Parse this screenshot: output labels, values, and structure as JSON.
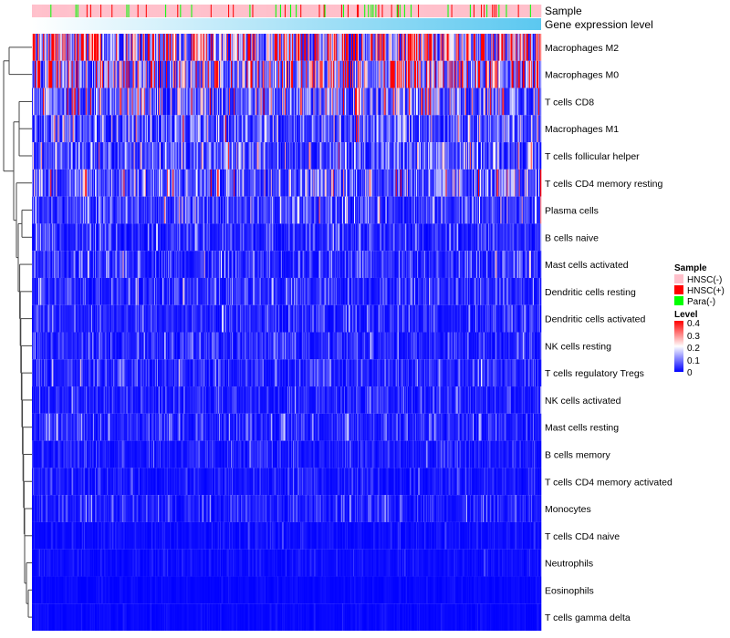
{
  "chart_data": {
    "type": "heatmap",
    "title": "",
    "annotations": {
      "sample_label": "Sample",
      "expression_label": "Gene expression level"
    },
    "rows": [
      {
        "name": "Macrophages M2",
        "mean_level": 0.25
      },
      {
        "name": "Macrophages M0",
        "mean_level": 0.2
      },
      {
        "name": "T cells CD8",
        "mean_level": 0.13
      },
      {
        "name": "Macrophages M1",
        "mean_level": 0.08
      },
      {
        "name": "T cells follicular helper",
        "mean_level": 0.08
      },
      {
        "name": "T cells CD4 memory resting",
        "mean_level": 0.1
      },
      {
        "name": "Plasma cells",
        "mean_level": 0.06
      },
      {
        "name": "B cells naive",
        "mean_level": 0.04
      },
      {
        "name": "Mast cells activated",
        "mean_level": 0.045
      },
      {
        "name": "Dendritic cells resting",
        "mean_level": 0.045
      },
      {
        "name": "Dendritic cells activated",
        "mean_level": 0.035
      },
      {
        "name": "NK cells resting",
        "mean_level": 0.035
      },
      {
        "name": "T cells regulatory  Tregs",
        "mean_level": 0.04
      },
      {
        "name": "NK cells activated",
        "mean_level": 0.03
      },
      {
        "name": "Mast cells resting",
        "mean_level": 0.04
      },
      {
        "name": "B cells memory",
        "mean_level": 0.025
      },
      {
        "name": "T cells CD4 memory activated",
        "mean_level": 0.02
      },
      {
        "name": "Monocytes",
        "mean_level": 0.03
      },
      {
        "name": "T cells CD4 naive",
        "mean_level": 0.012
      },
      {
        "name": "Neutrophils",
        "mean_level": 0.012
      },
      {
        "name": "Eosinophils",
        "mean_level": 0.005
      },
      {
        "name": "T cells gamma delta",
        "mean_level": 0.006
      }
    ],
    "n_samples": 550,
    "legend": {
      "sample": {
        "title": "Sample",
        "entries": [
          {
            "label": "HNSC(-)",
            "color": "#FFC0CB"
          },
          {
            "label": "HNSC(+)",
            "color": "#FF0000"
          },
          {
            "label": "Para(-)",
            "color": "#00FF00"
          }
        ]
      },
      "level": {
        "title": "Level",
        "ticks": [
          "0.4",
          "0.3",
          "0.2",
          "0.1",
          "0"
        ],
        "range": [
          0,
          0.4
        ],
        "colors": {
          "low": "#0000FF",
          "mid": "#FFFFFF",
          "high": "#FF0000"
        }
      },
      "placement": "right"
    },
    "expression_colors": {
      "low": "#FFFFFF",
      "high": "#5BC8F0"
    }
  }
}
